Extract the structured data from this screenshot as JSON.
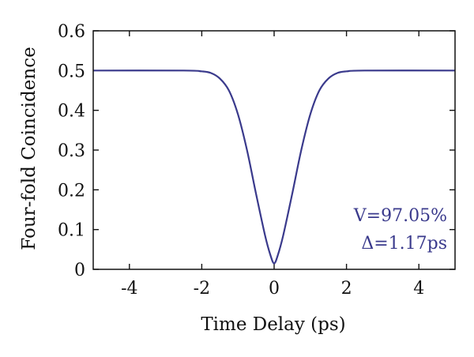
{
  "chart_data": {
    "type": "line",
    "title": "",
    "xlabel": "Time Delay (ps)",
    "ylabel": "Four-fold Coincidence",
    "xlim": [
      -5,
      5
    ],
    "ylim": [
      0,
      0.6
    ],
    "xticks": [
      -4,
      -2,
      0,
      2,
      4
    ],
    "xtick_labels": [
      "-4",
      "-2",
      "0",
      "2",
      "4"
    ],
    "yticks": [
      0,
      0.1,
      0.2,
      0.3,
      0.4,
      0.5,
      0.6
    ],
    "ytick_labels": [
      "0",
      "0.1",
      "0.2",
      "0.3",
      "0.4",
      "0.5",
      "0.6"
    ],
    "grid": false,
    "legend": "none",
    "series": [
      {
        "color": "#3a3a8c",
        "x": [
          -5,
          -2.5,
          -2.0,
          -1.75,
          -1.5,
          -1.25,
          -1.0,
          -0.75,
          -0.5,
          -0.25,
          -0.1,
          0.0,
          0.1,
          0.25,
          0.5,
          0.75,
          1.0,
          1.25,
          1.5,
          1.75,
          2.0,
          2.5,
          5
        ],
        "y": [
          0.5,
          0.5,
          0.498,
          0.494,
          0.48,
          0.45,
          0.39,
          0.3,
          0.19,
          0.085,
          0.035,
          0.015,
          0.035,
          0.085,
          0.19,
          0.3,
          0.39,
          0.45,
          0.48,
          0.494,
          0.498,
          0.5,
          0.5
        ]
      }
    ],
    "annotations": [
      "V=97.05%",
      "Δ=1.17ps"
    ]
  }
}
